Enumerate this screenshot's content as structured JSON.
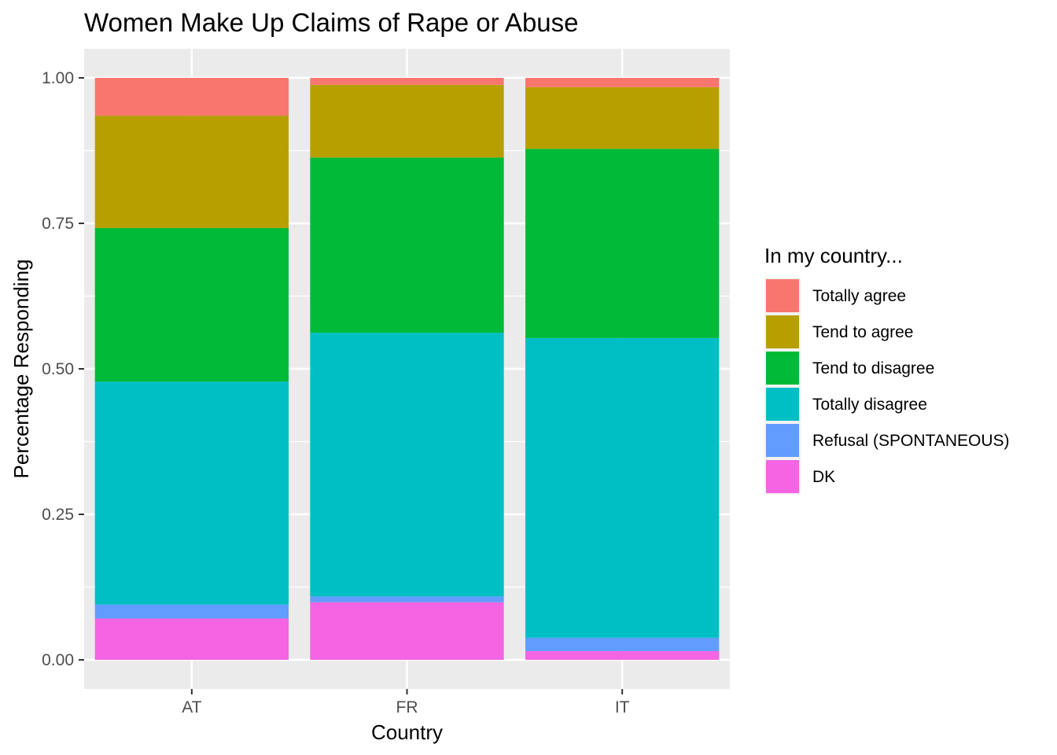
{
  "chart_data": {
    "type": "bar",
    "stacked": true,
    "title": "Women Make Up Claims of Rape or Abuse",
    "xlabel": "Country",
    "ylabel": "Percentage Responding",
    "ylim": [
      -0.05,
      1.05
    ],
    "yticks": [
      "0.00",
      "0.25",
      "0.50",
      "0.75",
      "1.00"
    ],
    "ytick_values": [
      0,
      0.25,
      0.5,
      0.75,
      1.0
    ],
    "grid": true,
    "legend_position": "right",
    "legend_title": "In my country...",
    "categories": [
      "AT",
      "FR",
      "IT"
    ],
    "series": [
      {
        "name": "Totally agree",
        "color": "#F8766D",
        "values": [
          0.065,
          0.012,
          0.016
        ]
      },
      {
        "name": "Tend to agree",
        "color": "#B79F00",
        "values": [
          0.193,
          0.125,
          0.106
        ]
      },
      {
        "name": "Tend to disagree",
        "color": "#00BA38",
        "values": [
          0.264,
          0.301,
          0.325
        ]
      },
      {
        "name": "Totally disagree",
        "color": "#00BFC4",
        "values": [
          0.383,
          0.453,
          0.515
        ]
      },
      {
        "name": "Refusal (SPONTANEOUS)",
        "color": "#619CFF",
        "values": [
          0.024,
          0.01,
          0.023
        ]
      },
      {
        "name": "DK",
        "color": "#F564E3",
        "values": [
          0.071,
          0.099,
          0.015
        ]
      }
    ]
  }
}
